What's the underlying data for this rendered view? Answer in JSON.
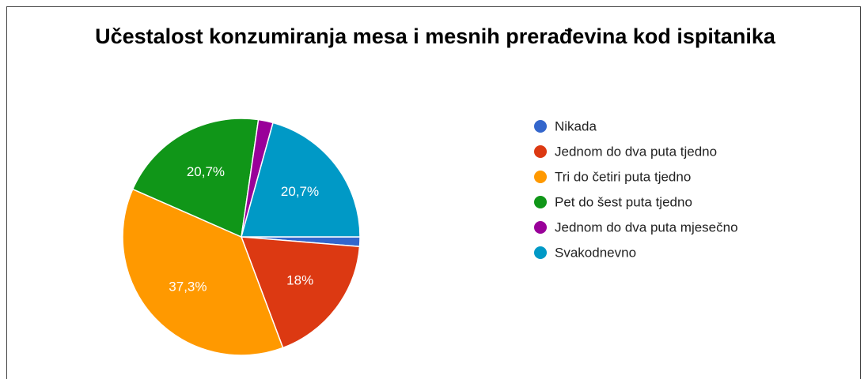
{
  "chart_data": {
    "type": "pie",
    "title": "Učestalost konzumiranja mesa i mesnih prerađevina kod ispitanika",
    "categories": [
      "Nikada",
      "Jednom do dva puta tjedno",
      "Tri do četiri puta tjedno",
      "Pet do šest puta tjedno",
      "Jednom do dva puta mjesečno",
      "Svakodnevno"
    ],
    "values": [
      1.3,
      18,
      37.3,
      20.7,
      2,
      20.7
    ],
    "value_labels": [
      null,
      "18%",
      "37,3%",
      "20,7%",
      null,
      "20,7%"
    ],
    "colors": [
      "#3366cc",
      "#dc3912",
      "#ff9900",
      "#109618",
      "#990099",
      "#0099c6"
    ],
    "legend": "right"
  }
}
